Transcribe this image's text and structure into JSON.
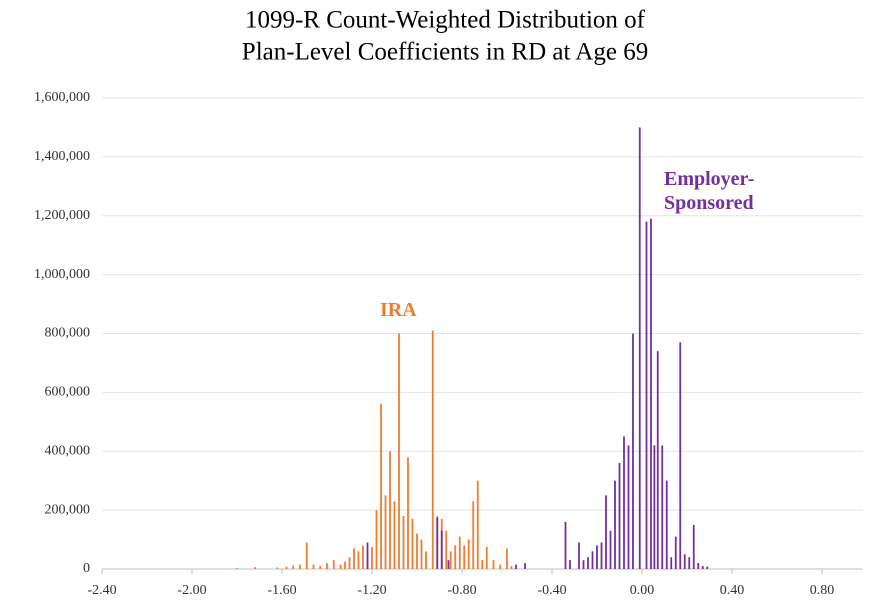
{
  "chart_data": {
    "type": "bar",
    "title": [
      "1099-R Count-Weighted Distribution of",
      "Plan-Level Coefficients  in RD at Age 69"
    ],
    "xlim": [
      -2.4,
      0.98
    ],
    "xticks": [
      {
        "value": -2.4,
        "label": "-2.40"
      },
      {
        "value": -2.0,
        "label": "-2.00"
      },
      {
        "value": -1.6,
        "label": "-1.60"
      },
      {
        "value": -1.2,
        "label": "-1.20"
      },
      {
        "value": -0.8,
        "label": "-0.80"
      },
      {
        "value": -0.4,
        "label": "-0.40"
      },
      {
        "value": 0.0,
        "label": "0.00"
      },
      {
        "value": 0.4,
        "label": "0.40"
      },
      {
        "value": 0.8,
        "label": "0.80"
      }
    ],
    "ylim": [
      0,
      1600000
    ],
    "yticks": [
      0,
      {
        "value": 200000,
        "label": "200,000"
      },
      {
        "value": 400000,
        "label": "400,000"
      },
      {
        "value": 600000,
        "label": "600,000"
      },
      {
        "value": 800000,
        "label": "800,000"
      },
      {
        "value": 1000000,
        "label": "1,000,000"
      },
      {
        "value": 1200000,
        "label": "1,200,000"
      },
      {
        "value": 1400000,
        "label": "1,400,000"
      },
      {
        "value": 1600000,
        "label": "1,600,000"
      }
    ],
    "grid": true,
    "series": [
      {
        "name": "IRA",
        "color": "#ed7d31",
        "x": [
          -1.8,
          -1.72,
          -1.62,
          -1.58,
          -1.55,
          -1.52,
          -1.49,
          -1.46,
          -1.43,
          -1.4,
          -1.37,
          -1.34,
          -1.32,
          -1.3,
          -1.28,
          -1.26,
          -1.24,
          -1.22,
          -1.2,
          -1.18,
          -1.16,
          -1.14,
          -1.12,
          -1.1,
          -1.08,
          -1.06,
          -1.04,
          -1.02,
          -1.0,
          -0.98,
          -0.96,
          -0.93,
          -0.91,
          -0.89,
          -0.87,
          -0.85,
          -0.83,
          -0.81,
          -0.79,
          -0.77,
          -0.75,
          -0.73,
          -0.71,
          -0.69,
          -0.66,
          -0.63,
          -0.6,
          -0.58
        ],
        "values": [
          3000,
          6000,
          5000,
          8000,
          12000,
          15000,
          90000,
          15000,
          10000,
          20000,
          30000,
          15000,
          25000,
          40000,
          70000,
          60000,
          80000,
          45000,
          75000,
          200000,
          560000,
          250000,
          400000,
          230000,
          800000,
          180000,
          380000,
          170000,
          120000,
          100000,
          60000,
          810000,
          180000,
          170000,
          130000,
          60000,
          80000,
          110000,
          80000,
          100000,
          230000,
          300000,
          30000,
          75000,
          30000,
          15000,
          70000,
          10000
        ]
      },
      {
        "name": "Employer-Sponsored",
        "color": "#7030a0",
        "x": [
          -1.22,
          -0.91,
          -0.89,
          -0.86,
          -0.56,
          -0.52,
          -0.34,
          -0.32,
          -0.28,
          -0.26,
          -0.24,
          -0.22,
          -0.2,
          -0.18,
          -0.16,
          -0.14,
          -0.12,
          -0.1,
          -0.08,
          -0.06,
          -0.04,
          -0.01,
          0.02,
          0.04,
          0.055,
          0.07,
          0.09,
          0.11,
          0.13,
          0.15,
          0.17,
          0.19,
          0.21,
          0.23,
          0.25,
          0.27,
          0.29
        ],
        "values": [
          90000,
          175000,
          130000,
          30000,
          15000,
          20000,
          160000,
          30000,
          90000,
          30000,
          40000,
          60000,
          80000,
          90000,
          250000,
          130000,
          300000,
          360000,
          450000,
          420000,
          800000,
          1500000,
          1180000,
          1190000,
          420000,
          740000,
          420000,
          300000,
          40000,
          110000,
          770000,
          50000,
          40000,
          150000,
          20000,
          10000,
          8000
        ]
      }
    ]
  }
}
